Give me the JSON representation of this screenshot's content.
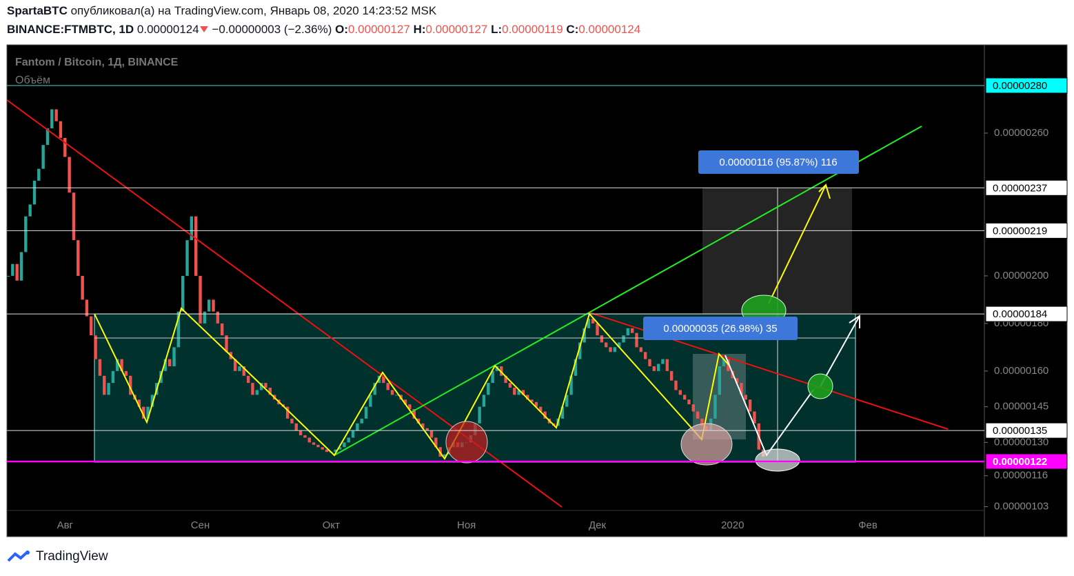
{
  "header": {
    "author": "SpartaBTC",
    "published": "опубликовал(а) на TradingView.com, Январь 08, 2020 14:23:52 MSK",
    "symbol": "BINANCE:FTMBTC, 1D",
    "last": "0.00000124",
    "change": "−0.00000003 (−2.36%)",
    "ohlc": [
      {
        "label": "O:",
        "value": "0.00000127"
      },
      {
        "label": "H:",
        "value": "0.00000127"
      },
      {
        "label": "L:",
        "value": "0.00000119"
      },
      {
        "label": "C:",
        "value": "0.00000124"
      }
    ]
  },
  "chart_data": {
    "type": "candlestick",
    "title": "Fantom / Bitcoin, 1Д, BINANCE",
    "volume_label": "Объём",
    "categories": [
      null,
      null,
      null,
      null,
      null,
      null,
      null,
      null,
      null,
      null,
      null,
      null,
      null,
      "Авг",
      null,
      null,
      null,
      null,
      null,
      null,
      null,
      null,
      null,
      null,
      null,
      null,
      null,
      null,
      null,
      null,
      null,
      null,
      null,
      null,
      null,
      null,
      null,
      null,
      null,
      null,
      null,
      null,
      null,
      null,
      "Сен",
      null,
      null,
      null,
      null,
      null,
      null,
      null,
      null,
      null,
      null,
      null,
      null,
      null,
      null,
      null,
      null,
      null,
      null,
      null,
      null,
      null,
      null,
      null,
      null,
      null,
      null,
      null,
      null,
      null,
      "Окт",
      null,
      null,
      null,
      null,
      null,
      null,
      null,
      null,
      null,
      null,
      null,
      null,
      null,
      null,
      null,
      null,
      null,
      null,
      null,
      null,
      null,
      null,
      null,
      null,
      null,
      null,
      null,
      null,
      null,
      null,
      "Ноя",
      null,
      null,
      null,
      null,
      null,
      null,
      null,
      null,
      null,
      null,
      null,
      null,
      null,
      null,
      null,
      null,
      null,
      null,
      null,
      null,
      null,
      null,
      null,
      null,
      null,
      null,
      null,
      null,
      null,
      "Дек",
      null,
      null,
      null,
      null,
      null,
      null,
      null,
      null,
      null,
      null,
      null,
      null,
      null,
      null,
      null,
      null,
      null,
      null,
      null,
      null,
      null,
      null,
      null,
      null,
      null,
      null,
      null,
      null,
      null,
      null,
      "2020",
      null,
      null,
      null,
      null,
      null,
      null,
      null,
      null,
      null,
      null,
      null,
      null,
      null,
      null,
      null,
      null,
      null,
      null,
      null,
      null,
      null,
      null,
      null,
      null,
      null,
      null,
      null,
      null,
      null,
      null,
      "Фев"
    ],
    "series": [
      {
        "name": "FTMBTC",
        "up_color": "#26a69a",
        "down_color": "#ef5350",
        "values": [
          2e-06,
          2.05e-06,
          1.98e-06,
          2.1e-06,
          2.25e-06,
          2.3e-06,
          2.4e-06,
          2.45e-06,
          2.55e-06,
          2.62e-06,
          2.7e-06,
          2.65e-06,
          2.58e-06,
          2.5e-06,
          2.35e-06,
          2.15e-06,
          2e-06,
          1.9e-06,
          1.83e-06,
          1.75e-06,
          1.65e-06,
          1.58e-06,
          1.5e-06,
          1.55e-06,
          1.6e-06,
          1.65e-06,
          1.6e-06,
          1.58e-06,
          1.5e-06,
          1.48e-06,
          1.45e-06,
          1.4e-06,
          1.45e-06,
          1.5e-06,
          1.55e-06,
          1.6e-06,
          1.65e-06,
          1.62e-06,
          1.7e-06,
          1.85e-06,
          2e-06,
          2.15e-06,
          2.25e-06,
          2e-06,
          1.8e-06,
          1.85e-06,
          1.9e-06,
          1.85e-06,
          1.8e-06,
          1.75e-06,
          1.68e-06,
          1.65e-06,
          1.6e-06,
          1.62e-06,
          1.58e-06,
          1.55e-06,
          1.5e-06,
          1.52e-06,
          1.55e-06,
          1.53e-06,
          1.5e-06,
          1.48e-06,
          1.46e-06,
          1.45e-06,
          1.4e-06,
          1.38e-06,
          1.35e-06,
          1.33e-06,
          1.32e-06,
          1.3e-06,
          1.29e-06,
          1.28e-06,
          1.27e-06,
          1.26e-06,
          1.26e-06,
          1.27e-06,
          1.28e-06,
          1.3e-06,
          1.32e-06,
          1.35e-06,
          1.38e-06,
          1.4e-06,
          1.45e-06,
          1.5e-06,
          1.55e-06,
          1.58e-06,
          1.55e-06,
          1.52e-06,
          1.5e-06,
          1.5e-06,
          1.48e-06,
          1.46e-06,
          1.44e-06,
          1.4e-06,
          1.38e-06,
          1.36e-06,
          1.35e-06,
          1.32e-06,
          1.28e-06,
          1.24e-06,
          1.25e-06,
          1.28e-06,
          1.3e-06,
          1.28e-06,
          1.3e-06,
          1.3e-06,
          1.33e-06,
          1.38e-06,
          1.45e-06,
          1.5e-06,
          1.55e-06,
          1.6e-06,
          1.62e-06,
          1.58e-06,
          1.55e-06,
          1.53e-06,
          1.5e-06,
          1.52e-06,
          1.5e-06,
          1.48e-06,
          1.47e-06,
          1.45e-06,
          1.43e-06,
          1.4e-06,
          1.38e-06,
          1.37e-06,
          1.4e-06,
          1.45e-06,
          1.5e-06,
          1.58e-06,
          1.65e-06,
          1.72e-06,
          1.78e-06,
          1.82e-06,
          1.8e-06,
          1.75e-06,
          1.72e-06,
          1.7e-06,
          1.68e-06,
          1.7e-06,
          1.72e-06,
          1.75e-06,
          1.78e-06,
          1.76e-06,
          1.7e-06,
          1.68e-06,
          1.65e-06,
          1.62e-06,
          1.6e-06,
          1.63e-06,
          1.65e-06,
          1.6e-06,
          1.56e-06,
          1.52e-06,
          1.5e-06,
          1.48e-06,
          1.46e-06,
          1.43e-06,
          1.4e-06,
          1.37e-06,
          1.35e-06,
          1.4e-06,
          1.5e-06,
          1.62e-06,
          1.65e-06,
          1.6e-06,
          1.57e-06,
          1.55e-06,
          1.5e-06,
          1.48e-06,
          1.43e-06,
          1.38e-06,
          1.27e-06,
          1.24e-06,
          null,
          null,
          null,
          null,
          null,
          null,
          null,
          null,
          null,
          null,
          null,
          null,
          null,
          null,
          null,
          null,
          null,
          null,
          null,
          null,
          null,
          null,
          null,
          null
        ]
      }
    ],
    "ylim": [
      1.014e-06,
      2.971e-06
    ],
    "yticks": [
      {
        "value": 2.6e-06,
        "label": "0.00000260"
      },
      {
        "value": 2e-06,
        "label": "0.00000200"
      },
      {
        "value": 1.8e-06,
        "label": "0.00000180"
      },
      {
        "value": 1.6e-06,
        "label": "0.00000160"
      },
      {
        "value": 1.45e-06,
        "label": "0.00000145"
      },
      {
        "value": 1.3e-06,
        "label": "0.00000130"
      },
      {
        "value": 1.16e-06,
        "label": "0.00000116"
      },
      {
        "value": 1.03e-06,
        "label": "0.00000103"
      }
    ],
    "grid": false,
    "levels": [
      {
        "value": 2.8e-06,
        "label": "0.00000280",
        "color": "#4dd0e1",
        "label_bg": "#00ffff"
      },
      {
        "value": 2.37e-06,
        "label": "0.00000237",
        "color": "#e0e0e0",
        "label_bg": "#ffffff"
      },
      {
        "value": 2.19e-06,
        "label": "0.00000219",
        "color": "#e0e0e0",
        "label_bg": "#ffffff"
      },
      {
        "value": 1.84e-06,
        "label": "0.00000184",
        "color": "#e0e0e0",
        "label_bg": "#ffffff"
      },
      {
        "value": 1.35e-06,
        "label": "0.00000135",
        "color": "#e0e0e0",
        "label_bg": "#ffffff"
      },
      {
        "value": 1.22e-06,
        "label": "0.00000122",
        "color": "#ff00ff",
        "label_bg": "#ff00ff"
      }
    ],
    "annotations": [
      "0.00000116 (95.87%) 116",
      "0.00000035 (26.98%) 35"
    ]
  },
  "footer": {
    "brand": "TradingView"
  }
}
